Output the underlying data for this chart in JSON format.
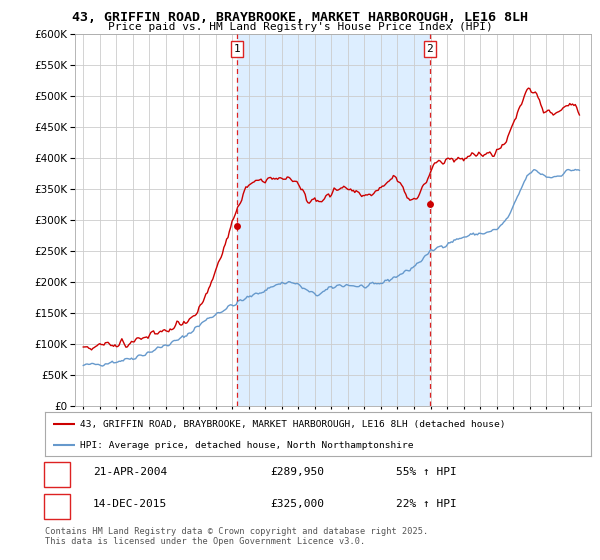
{
  "title_line1": "43, GRIFFIN ROAD, BRAYBROOKE, MARKET HARBOROUGH, LE16 8LH",
  "title_line2": "Price paid vs. HM Land Registry's House Price Index (HPI)",
  "ylim": [
    0,
    600000
  ],
  "yticks": [
    0,
    50000,
    100000,
    150000,
    200000,
    250000,
    300000,
    350000,
    400000,
    450000,
    500000,
    550000,
    600000
  ],
  "legend_line1": "43, GRIFFIN ROAD, BRAYBROOKE, MARKET HARBOROUGH, LE16 8LH (detached house)",
  "legend_line2": "HPI: Average price, detached house, North Northamptonshire",
  "sale1_date_str": "21-APR-2004",
  "sale1_price": 289950,
  "sale1_hpi_str": "55% ↑ HPI",
  "sale1_x": 2004.3,
  "sale2_date_str": "14-DEC-2015",
  "sale2_price": 325000,
  "sale2_hpi_str": "22% ↑ HPI",
  "sale2_x": 2015.95,
  "line_red_color": "#cc0000",
  "line_blue_color": "#6699cc",
  "shade_color": "#ddeeff",
  "vline_color": "#dd2222",
  "grid_color": "#cccccc",
  "footnote": "Contains HM Land Registry data © Crown copyright and database right 2025.\nThis data is licensed under the Open Government Licence v3.0.",
  "background_color": "#ffffff",
  "hpi_base_years": [
    1995,
    1996,
    1997,
    1998,
    1999,
    2000,
    2001,
    2002,
    2003,
    2004,
    2005,
    2006,
    2007,
    2008,
    2009,
    2010,
    2011,
    2012,
    2013,
    2014,
    2015,
    2016,
    2017,
    2018,
    2019,
    2020,
    2021,
    2022,
    2023,
    2024,
    2025
  ],
  "hpi_base_vals": [
    65000,
    68000,
    72000,
    78000,
    87000,
    98000,
    110000,
    130000,
    148000,
    162000,
    175000,
    187000,
    198000,
    195000,
    180000,
    190000,
    195000,
    192000,
    198000,
    210000,
    225000,
    248000,
    262000,
    272000,
    278000,
    285000,
    320000,
    375000,
    370000,
    375000,
    380000
  ],
  "red_base_years": [
    1995,
    1996,
    1997,
    1998,
    1999,
    2000,
    2001,
    2002,
    2003,
    2004,
    2005,
    2006,
    2007,
    2008,
    2009,
    2010,
    2011,
    2012,
    2013,
    2014,
    2015,
    2016,
    2017,
    2018,
    2019,
    2020,
    2021,
    2022,
    2023,
    2024,
    2025
  ],
  "red_base_vals": [
    95000,
    98000,
    100000,
    105000,
    112000,
    122000,
    134000,
    155000,
    220000,
    290000,
    355000,
    365000,
    370000,
    355000,
    330000,
    345000,
    350000,
    340000,
    350000,
    365000,
    330000,
    380000,
    395000,
    400000,
    405000,
    410000,
    455000,
    510000,
    475000,
    480000,
    470000
  ]
}
